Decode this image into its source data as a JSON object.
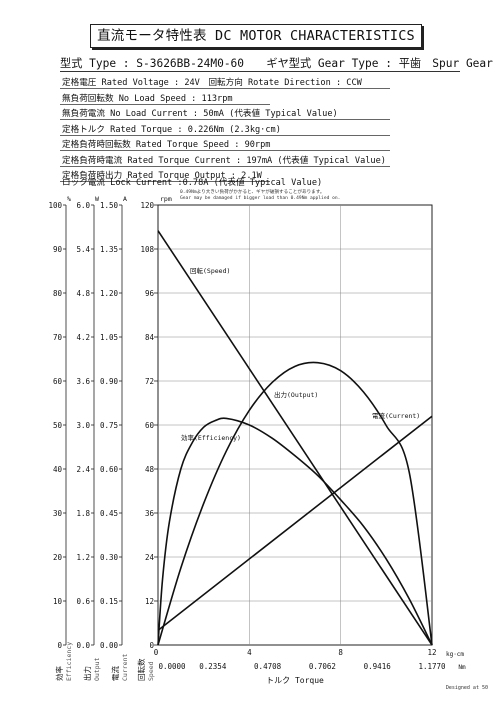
{
  "header": {
    "title": "直流モータ特性表 DC MOTOR CHARACTERISTICS",
    "model": "型式 Type : S-3626BB-24M0-60　　ギヤ型式 Gear Type : 平歯　Spur Gear"
  },
  "specs": [
    "定格電圧 Rated Voltage : 24V　回転方向 Rotate Direction : CCW",
    "無負荷回転数 No Load Speed : 113rpm",
    "無負荷電流 No Load Current : 50mA (代表値 Typical Value)",
    "定格トルク Rated Torque : 0.226Nm (2.3kg·cm)",
    "定格負荷時回転数 Rated Torque Speed : 90rpm",
    "定格負荷時電流 Rated Torque Current : 197mA (代表値 Typical Value)",
    "定格負荷時出力 Rated Torque Output : 2.1W",
    "ロック電流 Lock Current :0.78A (代表値 Typical Value)"
  ],
  "footer": {
    "credit": "Designed at 50"
  },
  "chart_data": {
    "type": "line",
    "warning_jp": "0.49Nmより大きい負荷がかかると、ギヤが破損することがあります。",
    "warning_en": "Gear may be damaged if bigger load than 0.49Nm applied on.",
    "xlabel": "トルク Torque",
    "xunits": {
      "top": "kg·cm",
      "bottom": "Nm"
    },
    "x_ticks_kgcm": [
      "0",
      "4",
      "8",
      "12"
    ],
    "x_ticks_nm": [
      "0.0000",
      "0.2354",
      "0.4708",
      "0.7062",
      "0.9416",
      "1.1770"
    ],
    "xlim_kgcm": [
      0,
      12
    ],
    "axes": [
      {
        "name": "rpm",
        "top_label": "rpm",
        "ticks": [
          "0",
          "12",
          "24",
          "36",
          "48",
          "60",
          "72",
          "84",
          "96",
          "108",
          "120"
        ],
        "range": [
          0,
          120
        ]
      },
      {
        "name": "A",
        "top_label": "A",
        "ticks": [
          "0.00",
          "0.15",
          "0.30",
          "0.45",
          "0.60",
          "0.75",
          "0.90",
          "1.05",
          "1.20",
          "1.35",
          "1.50"
        ],
        "range": [
          0,
          1.5
        ]
      },
      {
        "name": "W",
        "top_label": "W",
        "ticks": [
          "0.0",
          "0.6",
          "1.2",
          "1.8",
          "2.4",
          "3.0",
          "3.6",
          "4.2",
          "4.8",
          "5.4",
          "6.0"
        ],
        "range": [
          0,
          6
        ]
      },
      {
        "name": "%",
        "top_label": "%",
        "ticks": [
          "0",
          "10",
          "20",
          "30",
          "40",
          "50",
          "60",
          "70",
          "80",
          "90",
          "100"
        ],
        "range": [
          0,
          100
        ]
      }
    ],
    "axis_bottom_labels": [
      {
        "jp": "効率",
        "en": "Efficiency"
      },
      {
        "jp": "出力",
        "en": "Output"
      },
      {
        "jp": "電流",
        "en": "Current"
      },
      {
        "jp": "回転数",
        "en": "Speed"
      }
    ],
    "series": [
      {
        "name": "回転(Speed)",
        "axis": "rpm",
        "x": [
          0,
          12
        ],
        "y": [
          113,
          0
        ]
      },
      {
        "name": "電流(Current)",
        "axis": "A",
        "x": [
          0,
          12
        ],
        "y": [
          0.05,
          0.78
        ]
      },
      {
        "name": "出力(Output)",
        "axis": "W",
        "x": [
          0,
          1,
          2,
          3,
          4,
          5,
          6,
          7,
          8,
          9,
          10,
          11,
          12
        ],
        "y": [
          0,
          1.05,
          1.93,
          2.65,
          3.2,
          3.58,
          3.8,
          3.85,
          3.74,
          3.45,
          2.99,
          2.36,
          0
        ]
      },
      {
        "name": "効率(Efficiency)",
        "axis": "%",
        "x": [
          0,
          0.2,
          0.5,
          1,
          1.5,
          2,
          2.5,
          3,
          4,
          5,
          6,
          7,
          8,
          9,
          10,
          11,
          12
        ],
        "y": [
          0,
          15,
          28,
          40,
          46,
          49.5,
          51,
          51.5,
          50,
          47,
          43,
          38.5,
          33,
          27,
          19.5,
          10.5,
          0
        ]
      }
    ]
  }
}
